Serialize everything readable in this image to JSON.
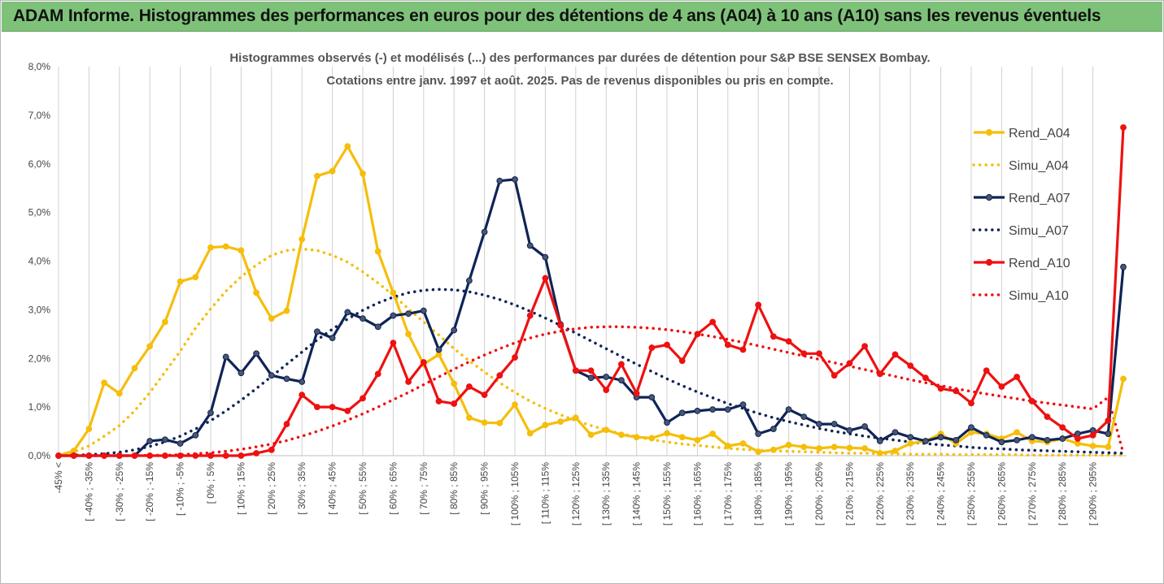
{
  "header": {
    "title": "ADAM Informe. Histogrammes des performances en euros pour des détentions de 4 ans (A04) à 10 ans (A10) sans les revenus éventuels"
  },
  "colors": {
    "banner": "#7ec27a",
    "A04": "#f5be0b",
    "A07": "#0f2457",
    "A10": "#ee1111",
    "grid": "#d0d0d0"
  },
  "chart_data": {
    "type": "line",
    "title": "Histogrammes observés (-) et modélisés (...) des performances par durées de détention pour S&P BSE SENSEX Bombay.",
    "subtitle": "Cotations entre janv. 1997 et août. 2025. Pas de revenus disponibles ou pris en compte.",
    "xlabel": "",
    "ylabel": "",
    "ylim": [
      0,
      8
    ],
    "y_ticks": [
      "0,0%",
      "1,0%",
      "2,0%",
      "3,0%",
      "4,0%",
      "5,0%",
      "6,0%",
      "7,0%",
      "8,0%"
    ],
    "y_unit": "%",
    "grid": "vertical",
    "legend_position": "right",
    "x_labels": [
      "-45% <",
      "[ -40% ; -35%",
      "[ -30% ; -25%",
      "[ -20% ; -15%",
      "[ -10% ; -5%",
      "[ 0% ; 5%",
      "[ 10% ; 15%",
      "[ 20% ; 25%",
      "[ 30% ; 35%",
      "[ 40% ; 45%",
      "[ 50% ; 55%",
      "[ 60% ; 65%",
      "[ 70% ; 75%",
      "[ 80% ; 85%",
      "[ 90% ; 95%",
      "[ 100% ; 105%",
      "[ 110% ; 115%",
      "[ 120% ; 125%",
      "[ 130% ; 135%",
      "[ 140% ; 145%",
      "[ 150% ; 155%",
      "[ 160% ; 165%",
      "[ 170% ; 175%",
      "[ 180% ; 185%",
      "[ 190% ; 195%",
      "[ 200% ; 205%",
      "[ 210% ; 215%",
      "[ 220% ; 225%",
      "[ 230% ; 235%",
      "[ 240% ; 245%",
      "[ 250% ; 255%",
      "[ 260% ; 265%",
      "[ 270% ; 275%",
      "[ 280% ; 285%",
      "[ 290% ; 295%"
    ],
    "series": [
      {
        "name": "Rend_A04",
        "style": "solid",
        "color": "#f5be0b",
        "values": [
          0.0,
          0.1,
          0.55,
          1.5,
          1.28,
          1.8,
          2.25,
          2.75,
          3.58,
          3.67,
          4.28,
          4.3,
          4.22,
          3.35,
          2.82,
          2.98,
          4.45,
          5.75,
          5.85,
          6.36,
          5.8,
          4.2,
          3.35,
          2.5,
          1.88,
          2.08,
          1.48,
          0.78,
          0.68,
          0.67,
          1.05,
          0.46,
          0.63,
          0.7,
          0.78,
          0.43,
          0.53,
          0.43,
          0.38,
          0.36,
          0.46,
          0.38,
          0.32,
          0.45,
          0.2,
          0.25,
          0.08,
          0.12,
          0.22,
          0.18,
          0.15,
          0.18,
          0.16,
          0.15,
          0.05,
          0.1,
          0.25,
          0.3,
          0.45,
          0.25,
          0.48,
          0.45,
          0.35,
          0.48,
          0.3,
          0.28,
          0.35,
          0.25,
          0.2,
          0.18,
          1.58
        ]
      },
      {
        "name": "Simu_A04",
        "style": "dotted",
        "color": "#f5be0b",
        "values": [
          0.02,
          0.08,
          0.2,
          0.4,
          0.62,
          0.92,
          1.3,
          1.72,
          2.15,
          2.62,
          3.02,
          3.38,
          3.68,
          3.92,
          4.12,
          4.22,
          4.25,
          4.22,
          4.12,
          3.98,
          3.78,
          3.55,
          3.3,
          3.02,
          2.75,
          2.48,
          2.2,
          1.95,
          1.72,
          1.5,
          1.3,
          1.12,
          0.97,
          0.84,
          0.72,
          0.62,
          0.53,
          0.45,
          0.39,
          0.33,
          0.28,
          0.24,
          0.21,
          0.18,
          0.15,
          0.13,
          0.11,
          0.1,
          0.09,
          0.08,
          0.07,
          0.06,
          0.05,
          0.05,
          0.04,
          0.04,
          0.03,
          0.03,
          0.03,
          0.02,
          0.02,
          0.02,
          0.02,
          0.02,
          0.01,
          0.01,
          0.01,
          0.01,
          0.01,
          0.01,
          0.01
        ]
      },
      {
        "name": "Rend_A07",
        "style": "solid",
        "color": "#0f2457",
        "values": [
          0.0,
          0.0,
          0.0,
          0.0,
          0.0,
          0.0,
          0.3,
          0.33,
          0.25,
          0.42,
          0.88,
          2.03,
          1.7,
          2.1,
          1.65,
          1.58,
          1.52,
          2.55,
          2.42,
          2.95,
          2.82,
          2.65,
          2.88,
          2.92,
          2.98,
          2.18,
          2.58,
          3.6,
          4.6,
          5.65,
          5.68,
          4.32,
          4.08,
          2.7,
          1.75,
          1.6,
          1.62,
          1.55,
          1.2,
          1.2,
          0.68,
          0.88,
          0.92,
          0.95,
          0.95,
          1.05,
          0.45,
          0.55,
          0.95,
          0.8,
          0.65,
          0.65,
          0.52,
          0.6,
          0.3,
          0.48,
          0.38,
          0.3,
          0.38,
          0.32,
          0.58,
          0.42,
          0.28,
          0.32,
          0.38,
          0.32,
          0.35,
          0.45,
          0.52,
          0.45,
          3.88
        ]
      },
      {
        "name": "Simu_A07",
        "style": "dotted",
        "color": "#0f2457",
        "values": [
          0.0,
          0.01,
          0.02,
          0.04,
          0.07,
          0.12,
          0.19,
          0.28,
          0.4,
          0.55,
          0.72,
          0.92,
          1.14,
          1.38,
          1.63,
          1.88,
          2.13,
          2.38,
          2.6,
          2.81,
          2.99,
          3.14,
          3.26,
          3.35,
          3.4,
          3.42,
          3.41,
          3.37,
          3.3,
          3.21,
          3.1,
          2.97,
          2.83,
          2.68,
          2.52,
          2.36,
          2.2,
          2.04,
          1.88,
          1.73,
          1.58,
          1.44,
          1.31,
          1.19,
          1.07,
          0.97,
          0.87,
          0.78,
          0.7,
          0.63,
          0.56,
          0.5,
          0.45,
          0.4,
          0.36,
          0.32,
          0.28,
          0.25,
          0.22,
          0.2,
          0.17,
          0.15,
          0.14,
          0.12,
          0.11,
          0.1,
          0.09,
          0.08,
          0.07,
          0.06,
          0.05
        ]
      },
      {
        "name": "Rend_A10",
        "style": "solid",
        "color": "#ee1111",
        "values": [
          0.0,
          0.0,
          0.0,
          0.0,
          0.0,
          0.0,
          0.0,
          0.0,
          0.0,
          0.0,
          0.0,
          0.0,
          0.0,
          0.05,
          0.12,
          0.65,
          1.25,
          1.0,
          1.0,
          0.92,
          1.18,
          1.68,
          2.32,
          1.52,
          1.92,
          1.12,
          1.07,
          1.42,
          1.25,
          1.65,
          2.02,
          2.88,
          3.65,
          2.68,
          1.75,
          1.75,
          1.35,
          1.88,
          1.28,
          2.22,
          2.28,
          1.95,
          2.5,
          2.75,
          2.28,
          2.18,
          3.1,
          2.45,
          2.35,
          2.1,
          2.1,
          1.65,
          1.9,
          2.25,
          1.68,
          2.08,
          1.85,
          1.6,
          1.38,
          1.33,
          1.08,
          1.75,
          1.42,
          1.62,
          1.12,
          0.8,
          0.58,
          0.35,
          0.42,
          0.72,
          6.75
        ]
      },
      {
        "name": "Simu_A10",
        "style": "dotted",
        "color": "#ee1111",
        "values": [
          0.0,
          0.0,
          0.0,
          0.0,
          0.0,
          0.0,
          0.01,
          0.01,
          0.02,
          0.04,
          0.06,
          0.09,
          0.13,
          0.18,
          0.24,
          0.31,
          0.4,
          0.5,
          0.61,
          0.73,
          0.86,
          1.0,
          1.15,
          1.3,
          1.46,
          1.62,
          1.78,
          1.93,
          2.07,
          2.2,
          2.32,
          2.42,
          2.5,
          2.56,
          2.61,
          2.64,
          2.65,
          2.65,
          2.64,
          2.62,
          2.59,
          2.55,
          2.5,
          2.45,
          2.39,
          2.33,
          2.26,
          2.19,
          2.12,
          2.05,
          1.98,
          1.91,
          1.84,
          1.77,
          1.7,
          1.63,
          1.56,
          1.5,
          1.44,
          1.38,
          1.32,
          1.27,
          1.22,
          1.17,
          1.12,
          1.08,
          1.04,
          1.0,
          0.96,
          1.2,
          0.05
        ]
      }
    ]
  }
}
